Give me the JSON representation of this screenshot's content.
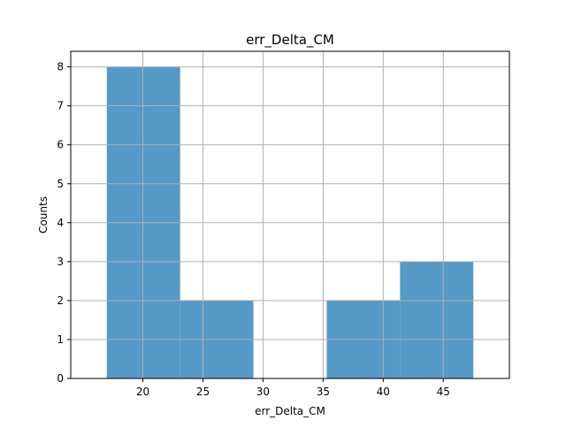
{
  "chart_data": {
    "type": "bar",
    "title": "err_Delta_CM",
    "xlabel": "err_Delta_CM",
    "ylabel": "Counts",
    "bins": [
      {
        "x0": 17.0,
        "x1": 23.1,
        "count": 8
      },
      {
        "x0": 23.1,
        "x1": 29.2,
        "count": 2
      },
      {
        "x0": 29.2,
        "x1": 35.3,
        "count": 0
      },
      {
        "x0": 35.3,
        "x1": 41.4,
        "count": 2
      },
      {
        "x0": 41.4,
        "x1": 47.5,
        "count": 3
      }
    ],
    "xlim": [
      14.0,
      50.5
    ],
    "ylim": [
      0,
      8.4
    ],
    "xticks": [
      20,
      25,
      30,
      35,
      40,
      45
    ],
    "yticks": [
      0,
      1,
      2,
      3,
      4,
      5,
      6,
      7,
      8
    ],
    "grid": true,
    "bar_color": "#5599c7",
    "grid_color": "#b0b0b0"
  }
}
